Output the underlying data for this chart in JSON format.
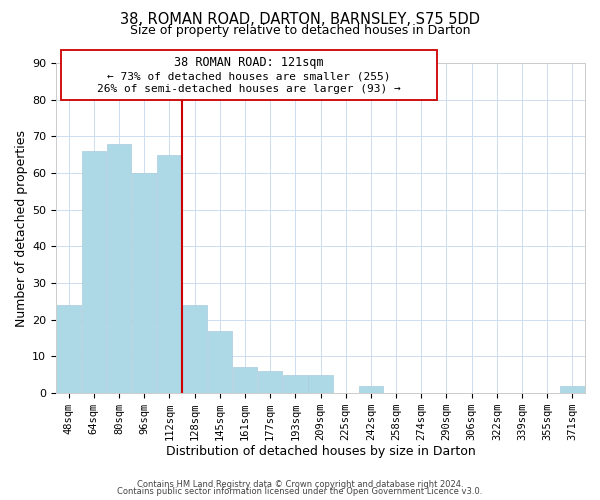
{
  "title_main": "38, ROMAN ROAD, DARTON, BARNSLEY, S75 5DD",
  "title_sub": "Size of property relative to detached houses in Darton",
  "xlabel": "Distribution of detached houses by size in Darton",
  "ylabel": "Number of detached properties",
  "bar_labels": [
    "48sqm",
    "64sqm",
    "80sqm",
    "96sqm",
    "112sqm",
    "128sqm",
    "145sqm",
    "161sqm",
    "177sqm",
    "193sqm",
    "209sqm",
    "225sqm",
    "242sqm",
    "258sqm",
    "274sqm",
    "290sqm",
    "306sqm",
    "322sqm",
    "339sqm",
    "355sqm",
    "371sqm"
  ],
  "bar_heights": [
    24,
    66,
    68,
    60,
    65,
    24,
    17,
    7,
    6,
    5,
    5,
    0,
    2,
    0,
    0,
    0,
    0,
    0,
    0,
    0,
    2
  ],
  "bar_color": "#add8e6",
  "bar_edge_color": "#aaccdd",
  "vline_color": "#cc0000",
  "annotation_line1": "38 ROMAN ROAD: 121sqm",
  "annotation_line2": "← 73% of detached houses are smaller (255)",
  "annotation_line3": "26% of semi-detached houses are larger (93) →",
  "annotation_border_color": "#cc0000",
  "ylim": [
    0,
    90
  ],
  "footer1": "Contains HM Land Registry data © Crown copyright and database right 2024.",
  "footer2": "Contains public sector information licensed under the Open Government Licence v3.0.",
  "background_color": "#ffffff",
  "grid_color": "#ccddf0"
}
